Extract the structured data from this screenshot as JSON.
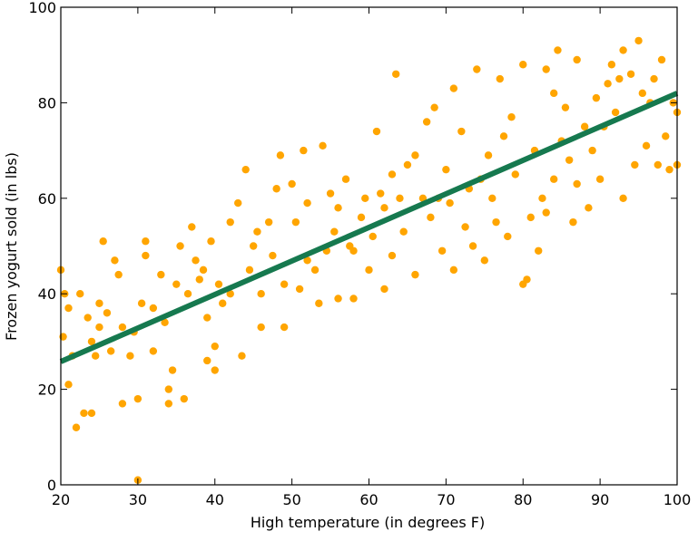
{
  "chart_data": {
    "type": "scatter",
    "x_label": "High temperature (in degrees F)",
    "y_label": "Frozen yogurt sold (in lbs)",
    "xlim": [
      20,
      100
    ],
    "xticks": [
      20,
      30,
      40,
      50,
      60,
      70,
      80,
      90,
      100
    ],
    "ylim": [
      0,
      100
    ],
    "yticks": [
      0,
      20,
      40,
      60,
      80,
      100
    ],
    "grid": false,
    "color": "#ffa500",
    "x": [
      20,
      20.5,
      21,
      20.3,
      21,
      21.5,
      22,
      22.5,
      23,
      23.5,
      24,
      24,
      24.5,
      25,
      25,
      25.5,
      26,
      26.5,
      27,
      27.5,
      28,
      28,
      29,
      29.5,
      30,
      30,
      30.5,
      31,
      31,
      32,
      32,
      33,
      33.5,
      34,
      34,
      34.5,
      35,
      35.5,
      36,
      36.5,
      37,
      37.5,
      38,
      38.5,
      39,
      39,
      39.5,
      40,
      40,
      40.5,
      41,
      42,
      42,
      43,
      43.5,
      44,
      44.5,
      45,
      45.5,
      46,
      46,
      47,
      47.5,
      48,
      48.5,
      49,
      49,
      50,
      50.5,
      51,
      51.5,
      52,
      52,
      53,
      53.5,
      54,
      54.5,
      55,
      55.5,
      56,
      56,
      57,
      57.5,
      58,
      58,
      59,
      59.5,
      60,
      60.5,
      61,
      61.5,
      62,
      62,
      63,
      63,
      63.5,
      64,
      64.5,
      65,
      66,
      66,
      67,
      67.5,
      68,
      68.5,
      69,
      69.5,
      70,
      70.5,
      71,
      71,
      72,
      72.5,
      73,
      73.5,
      74,
      74.5,
      75,
      75.5,
      76,
      76.5,
      77,
      77.5,
      78,
      78.5,
      79,
      80,
      80,
      80.5,
      81,
      81.5,
      82,
      82.5,
      83,
      83,
      84,
      84,
      84.5,
      85,
      85.5,
      86,
      86.5,
      87,
      87,
      88,
      88.5,
      89,
      89.5,
      90,
      90.5,
      91,
      91.5,
      92,
      92.5,
      93,
      93,
      94,
      94.5,
      95,
      95.5,
      96,
      96.5,
      97,
      97.5,
      98,
      98.5,
      99,
      99.5,
      100,
      100
    ],
    "y": [
      45,
      40,
      37,
      31,
      21,
      27,
      12,
      40,
      15,
      35,
      15,
      30,
      27,
      33,
      38,
      51,
      36,
      28,
      47,
      44,
      17,
      33,
      27,
      32,
      1,
      18,
      38,
      48,
      51,
      37,
      28,
      44,
      34,
      20,
      17,
      24,
      42,
      50,
      18,
      40,
      54,
      47,
      43,
      45,
      26,
      35,
      51,
      24,
      29,
      42,
      38,
      55,
      40,
      59,
      27,
      66,
      45,
      50,
      53,
      33,
      40,
      55,
      48,
      62,
      69,
      33,
      42,
      63,
      55,
      41,
      70,
      59,
      47,
      45,
      38,
      71,
      49,
      61,
      53,
      39,
      58,
      64,
      50,
      49,
      39,
      56,
      60,
      45,
      52,
      74,
      61,
      41,
      58,
      48,
      65,
      86,
      60,
      53,
      67,
      69,
      44,
      60,
      76,
      56,
      79,
      60,
      49,
      66,
      59,
      45,
      83,
      74,
      54,
      62,
      50,
      87,
      64,
      47,
      69,
      60,
      55,
      85,
      73,
      52,
      77,
      65,
      88,
      42,
      43,
      56,
      70,
      49,
      60,
      87,
      57,
      64,
      82,
      91,
      72,
      79,
      68,
      55,
      89,
      63,
      75,
      58,
      70,
      81,
      64,
      75,
      84,
      88,
      78,
      85,
      60,
      91,
      86,
      67,
      93,
      82,
      71,
      80,
      85,
      67,
      89,
      73,
      66,
      80,
      78,
      67
    ],
    "fit_line": {
      "x": [
        20,
        100
      ],
      "y": [
        25.8,
        82
      ],
      "color": "#16794f"
    }
  }
}
